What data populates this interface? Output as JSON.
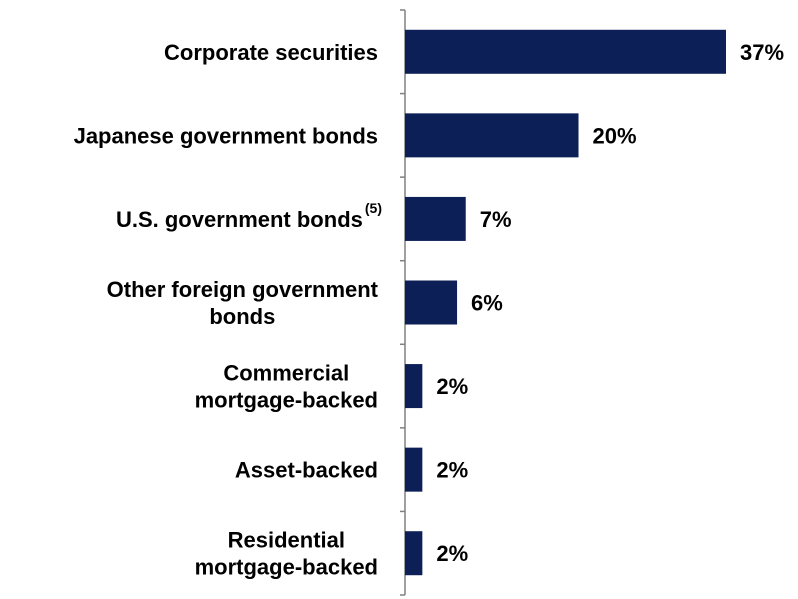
{
  "chart_data": {
    "type": "bar",
    "orientation": "horizontal",
    "categories": [
      {
        "lines": [
          "Corporate securities"
        ]
      },
      {
        "lines": [
          "Japanese government bonds"
        ]
      },
      {
        "lines": [
          "U.S. government bonds"
        ],
        "superscript": "(5)"
      },
      {
        "lines": [
          "Other foreign government",
          "bonds"
        ]
      },
      {
        "lines": [
          "Commercial",
          "mortgage-backed"
        ]
      },
      {
        "lines": [
          "Asset-backed"
        ]
      },
      {
        "lines": [
          "Residential",
          "mortgage-backed"
        ]
      }
    ],
    "values": [
      37,
      20,
      7,
      6,
      2,
      2,
      2
    ],
    "value_labels": [
      "37%",
      "20%",
      "7%",
      "6%",
      "2%",
      "2%",
      "2%"
    ],
    "xlim": [
      0,
      42
    ],
    "bar_color": "#0c1f56",
    "axis_color": "#808080",
    "grid": false,
    "legend": "none",
    "title": "",
    "xlabel": "",
    "ylabel": ""
  }
}
